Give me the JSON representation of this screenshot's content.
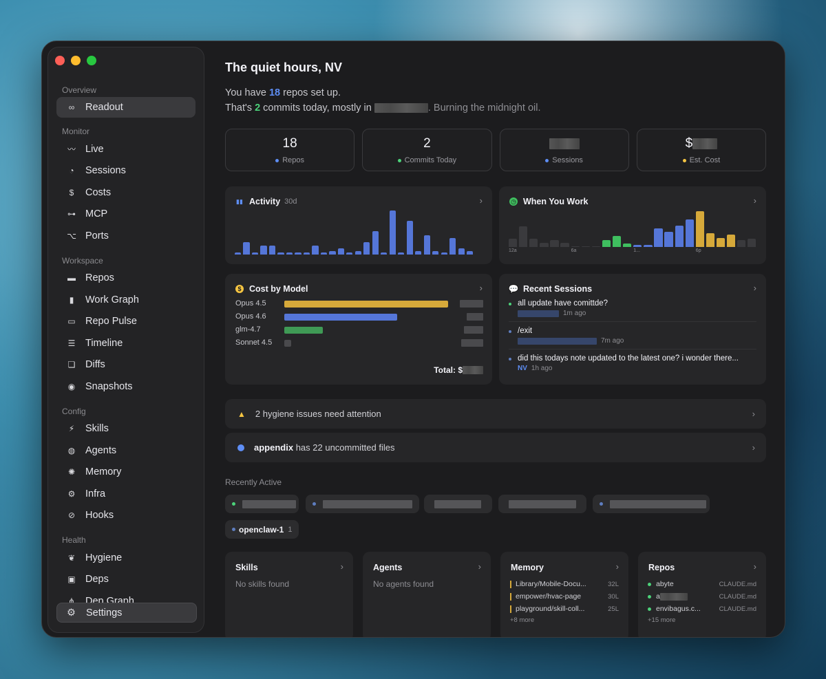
{
  "sidebar": {
    "sections": [
      {
        "label": "Overview",
        "items": [
          {
            "label": "Readout",
            "icon": "binoculars-icon",
            "glyph": "∞",
            "active": true
          }
        ]
      },
      {
        "label": "Monitor",
        "items": [
          {
            "label": "Live",
            "icon": "pulse-icon",
            "glyph": "〰"
          },
          {
            "label": "Sessions",
            "icon": "clock-icon",
            "glyph": "◔"
          },
          {
            "label": "Costs",
            "icon": "dollar-icon",
            "glyph": "$"
          },
          {
            "label": "MCP",
            "icon": "car-icon",
            "glyph": "⊶"
          },
          {
            "label": "Ports",
            "icon": "branch-icon",
            "glyph": "⌥"
          }
        ]
      },
      {
        "label": "Workspace",
        "items": [
          {
            "label": "Repos",
            "icon": "folder-icon",
            "glyph": "▬"
          },
          {
            "label": "Work Graph",
            "icon": "bar-chart-icon",
            "glyph": "▮"
          },
          {
            "label": "Repo Pulse",
            "icon": "waveform-icon",
            "glyph": "▭"
          },
          {
            "label": "Timeline",
            "icon": "list-icon",
            "glyph": "☰"
          },
          {
            "label": "Diffs",
            "icon": "documents-icon",
            "glyph": "❏"
          },
          {
            "label": "Snapshots",
            "icon": "camera-icon",
            "glyph": "◉"
          }
        ]
      },
      {
        "label": "Config",
        "items": [
          {
            "label": "Skills",
            "icon": "bolt-icon",
            "glyph": "⚡"
          },
          {
            "label": "Agents",
            "icon": "people-icon",
            "glyph": "◍"
          },
          {
            "label": "Memory",
            "icon": "brain-icon",
            "glyph": "✺"
          },
          {
            "label": "Infra",
            "icon": "gears-icon",
            "glyph": "⚙"
          },
          {
            "label": "Hooks",
            "icon": "compass-icon",
            "glyph": "⊘"
          }
        ]
      },
      {
        "label": "Health",
        "items": [
          {
            "label": "Hygiene",
            "icon": "leaf-icon",
            "glyph": "❦"
          },
          {
            "label": "Deps",
            "icon": "package-icon",
            "glyph": "▣"
          },
          {
            "label": "Dep Graph",
            "icon": "graph-icon",
            "glyph": "⋔"
          }
        ]
      }
    ],
    "settings_label": "Settings",
    "settings_glyph": "⚙"
  },
  "header": {
    "title": "The quiet hours, NV",
    "line1_pre": "You have ",
    "line1_num": "18",
    "line1_post": " repos set up.",
    "line2_pre": "That's ",
    "line2_num": "2",
    "line2_mid": " commits today, mostly in ",
    "line2_post": ". Burning the midnight oil."
  },
  "stats": [
    {
      "value": "18",
      "label": "Repos",
      "dot_color": "#5e8ef5"
    },
    {
      "value": "2",
      "label": "Commits Today",
      "dot_color": "#4cd37a"
    },
    {
      "value": "",
      "label": "Sessions",
      "dot_color": "#5e8ef5"
    },
    {
      "value": "$",
      "label": "Est. Cost",
      "dot_color": "#f5c542"
    }
  ],
  "activity": {
    "title": "Activity",
    "range": "30d",
    "values": [
      3,
      17,
      3,
      13,
      13,
      3,
      3,
      3,
      3,
      13,
      3,
      5,
      9,
      3,
      5,
      17,
      33,
      3,
      62,
      3,
      47,
      5,
      27,
      5,
      3,
      23,
      9,
      5
    ]
  },
  "when_you_work": {
    "title": "When You Work",
    "tick_labels": [
      "12a",
      "6a",
      "1...",
      "6p"
    ],
    "hours": [
      {
        "v": 12,
        "c": "#3a3a3d"
      },
      {
        "v": 30,
        "c": "#3a3a3d"
      },
      {
        "v": 12,
        "c": "#3a3a3d"
      },
      {
        "v": 6,
        "c": "#3a3a3d"
      },
      {
        "v": 10,
        "c": "#3a3a3d"
      },
      {
        "v": 6,
        "c": "#3a3a3d"
      },
      {
        "v": 1,
        "c": "#3a3a3d"
      },
      {
        "v": 1,
        "c": "#3a3a3d"
      },
      {
        "v": 1,
        "c": "#3a3a3d"
      },
      {
        "v": 10,
        "c": "#3fbf5f"
      },
      {
        "v": 16,
        "c": "#3fbf5f"
      },
      {
        "v": 5,
        "c": "#3fbf5f"
      },
      {
        "v": 3,
        "c": "#5576d8"
      },
      {
        "v": 3,
        "c": "#5576d8"
      },
      {
        "v": 27,
        "c": "#5576d8"
      },
      {
        "v": 22,
        "c": "#5576d8"
      },
      {
        "v": 31,
        "c": "#5576d8"
      },
      {
        "v": 40,
        "c": "#5576d8"
      },
      {
        "v": 52,
        "c": "#d6a93a"
      },
      {
        "v": 20,
        "c": "#d6a93a"
      },
      {
        "v": 13,
        "c": "#d6a93a"
      },
      {
        "v": 18,
        "c": "#d6a93a"
      },
      {
        "v": 10,
        "c": "#3a3a3d"
      },
      {
        "v": 12,
        "c": "#3a3a3d"
      }
    ]
  },
  "cost_by_model": {
    "title": "Cost by Model",
    "models": [
      {
        "name": "Opus 4.5",
        "share": 1.0,
        "color": "#d6a93a"
      },
      {
        "name": "Opus 4.6",
        "share": 0.69,
        "color": "#5576d8"
      },
      {
        "name": "glm-4.7",
        "share": 0.235,
        "color": "#3f9a55"
      },
      {
        "name": "Sonnet 4.5",
        "share": 0.04,
        "color": "#4a4a4d"
      }
    ],
    "total_label": "Total: $"
  },
  "recent_sessions": {
    "title": "Recent Sessions",
    "items": [
      {
        "text": "all update have comittde?",
        "who": "",
        "time": "1m ago",
        "dot": "#4cd37a"
      },
      {
        "text": "/exit",
        "who": "",
        "time": "7m ago",
        "dot": "#5e7dbf"
      },
      {
        "text": "did this todays note updated to the latest one? i wonder there...",
        "who": "NV",
        "time": "1h ago",
        "dot": "#5e7dbf"
      }
    ]
  },
  "alerts": [
    {
      "text": "2 hygiene issues need attention"
    },
    {
      "name": "appendix",
      "text": " has 22 uncommitted files"
    }
  ],
  "recently_active": {
    "label": "Recently Active",
    "chips": [
      {
        "name": "",
        "count": "",
        "dot": "#4cd37a"
      },
      {
        "name": "",
        "count": "",
        "dot": "#5e7dbf"
      },
      {
        "name": "",
        "count": "",
        "dot": ""
      },
      {
        "name": "",
        "count": "",
        "dot": ""
      },
      {
        "name": "",
        "count": "",
        "dot": "#5e7dbf"
      },
      {
        "name": "openclaw-1",
        "count": "1",
        "dot": "#5e7dbf"
      }
    ]
  },
  "bottom_cards": {
    "skills": {
      "title": "Skills",
      "empty": "No skills found"
    },
    "agents": {
      "title": "Agents",
      "empty": "No agents found"
    },
    "memory": {
      "title": "Memory",
      "rows": [
        {
          "name": "Library/Mobile-Docu...",
          "size": "32L"
        },
        {
          "name": "empower/hvac-page",
          "size": "30L"
        },
        {
          "name": "playground/skill-coll...",
          "size": "25L"
        }
      ],
      "more": "+8 more"
    },
    "repos": {
      "title": "Repos",
      "rows": [
        {
          "name": "abyte",
          "file": "CLAUDE.md"
        },
        {
          "name": "a",
          "file": "CLAUDE.md"
        },
        {
          "name": "envibagus.c...",
          "file": "CLAUDE.md"
        }
      ],
      "more": "+15 more"
    }
  },
  "colors": {
    "accent_blue": "#5e8ef5",
    "accent_green": "#4cd37a",
    "accent_yellow": "#f5c542"
  }
}
